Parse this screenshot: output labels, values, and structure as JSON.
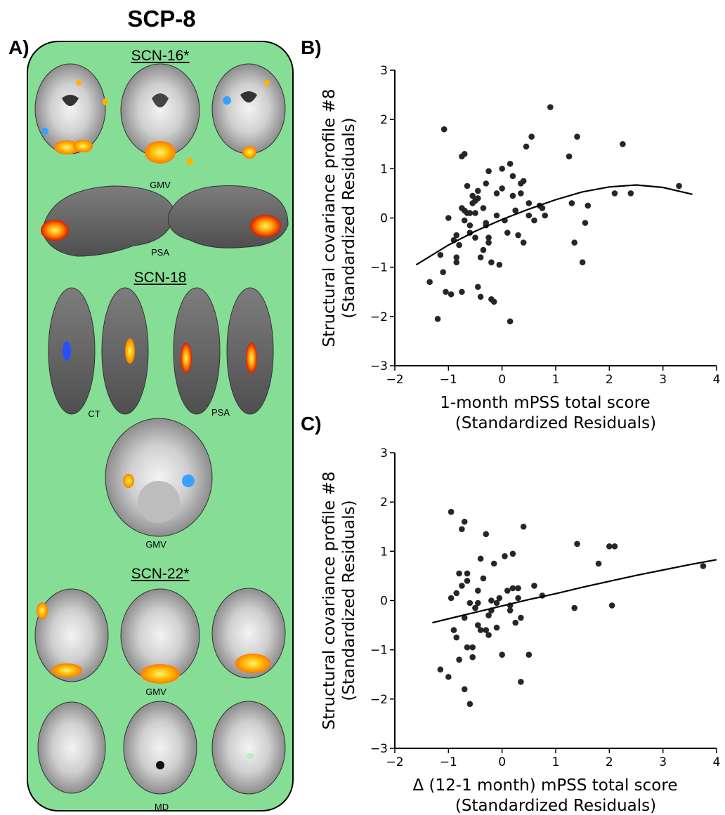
{
  "figure": {
    "title": "SCP-8",
    "panel_a": {
      "letter": "A)",
      "networks": [
        {
          "name": "SCN-16*",
          "labels": [
            "GMV",
            "PSA"
          ]
        },
        {
          "name": "SCN-18",
          "labels": [
            "CT",
            "PSA",
            "GMV"
          ]
        },
        {
          "name": "SCN-22*",
          "labels": [
            "GMV",
            "MD"
          ]
        }
      ]
    }
  },
  "chart_data": [
    {
      "panel": "B)",
      "type": "scatter",
      "xlabel_line1": "1-month mPSS total score",
      "xlabel_line2": "(Standardized Residuals)",
      "ylabel_line1": "Structural covariance profile #8",
      "ylabel_line2": "(Standardized Residuals)",
      "xlim": [
        -2,
        4
      ],
      "ylim": [
        -3,
        3
      ],
      "xticks": [
        -2,
        -1,
        0,
        1,
        2,
        3,
        4
      ],
      "yticks": [
        -3,
        -2,
        -1,
        0,
        1,
        2,
        3
      ],
      "x": [
        -1.35,
        -1.2,
        -1.1,
        -1.15,
        -1.05,
        -1.0,
        -0.95,
        -0.9,
        -0.85,
        -0.8,
        -0.85,
        -0.75,
        -0.7,
        -0.7,
        -0.65,
        -0.6,
        -0.55,
        -0.5,
        -0.5,
        -0.45,
        -0.4,
        -0.35,
        -0.3,
        -0.25,
        -0.2,
        -0.15,
        -0.1,
        -0.05,
        0.0,
        0.05,
        0.1,
        0.15,
        0.2,
        0.25,
        0.3,
        0.35,
        0.4,
        0.45,
        0.5,
        0.55,
        0.6,
        0.7,
        0.8,
        0.9,
        1.3,
        1.35,
        1.5,
        1.6,
        2.1,
        2.25,
        2.4,
        3.3,
        -1.08,
        -0.75,
        -0.7,
        -0.65,
        -0.6,
        -0.55,
        -0.5,
        -0.45,
        -0.4,
        -0.35,
        -0.3,
        -0.25,
        -0.2,
        -0.1,
        0.0,
        0.15,
        0.25,
        0.35,
        0.5,
        0.75,
        1.25,
        1.4,
        1.55,
        -0.85,
        -0.75,
        -0.45,
        -0.6,
        -0.3,
        -0.25,
        0.2,
        0.4
      ],
      "y": [
        -1.3,
        -2.05,
        -1.1,
        -0.75,
        -1.5,
        0.0,
        -1.55,
        -0.45,
        -0.9,
        -0.55,
        -0.35,
        -1.5,
        1.3,
        0.15,
        0.65,
        -0.3,
        0.3,
        0.35,
        0.1,
        0.55,
        -0.8,
        -0.65,
        0.7,
        -0.5,
        -1.65,
        -1.7,
        0.05,
        -0.95,
        1.0,
        -0.05,
        -0.3,
        1.1,
        0.45,
        0.15,
        -0.35,
        0.7,
        0.75,
        1.45,
        0.05,
        1.65,
        -0.05,
        0.25,
        0.05,
        2.25,
        0.3,
        -0.5,
        -0.9,
        0.25,
        0.5,
        1.5,
        0.5,
        0.65,
        1.8,
        1.25,
        -0.05,
        0.1,
        -0.15,
        0.45,
        -0.4,
        -1.4,
        -1.6,
        0.2,
        -0.1,
        0.95,
        -0.9,
        0.5,
        0.6,
        -2.1,
        0.15,
        0.5,
        0.3,
        0.2,
        1.25,
        1.65,
        -0.1,
        -0.8,
        0.2,
        0.4,
        0.1,
        -0.15,
        -0.4,
        0.85,
        -0.5
      ],
      "fit": {
        "x": [
          -1.6,
          -1.0,
          -0.5,
          0.0,
          0.5,
          1.0,
          1.5,
          2.0,
          2.5,
          3.0,
          3.55
        ],
        "y": [
          -0.95,
          -0.55,
          -0.27,
          -0.03,
          0.18,
          0.37,
          0.53,
          0.63,
          0.67,
          0.62,
          0.48
        ]
      }
    },
    {
      "panel": "C)",
      "type": "scatter",
      "xlabel_line1": "Δ (12-1 month) mPSS total score",
      "xlabel_line2": "(Standardized Residuals)",
      "ylabel_line1": "Structural covariance profile #8",
      "ylabel_line2": "(Standardized Residuals)",
      "xlim": [
        -2,
        4
      ],
      "ylim": [
        -3,
        3
      ],
      "xticks": [
        -2,
        -1,
        0,
        1,
        2,
        3,
        4
      ],
      "yticks": [
        -3,
        -2,
        -1,
        0,
        1,
        2,
        3
      ],
      "x": [
        -1.15,
        -1.0,
        -0.95,
        -0.9,
        -0.85,
        -0.8,
        -0.8,
        -0.75,
        -0.7,
        -0.7,
        -0.65,
        -0.6,
        -0.55,
        -0.5,
        -0.45,
        -0.4,
        -0.35,
        -0.3,
        -0.25,
        -0.2,
        -0.15,
        -0.1,
        -0.05,
        0.0,
        0.05,
        0.1,
        0.15,
        0.2,
        0.25,
        0.3,
        0.35,
        0.4,
        0.5,
        0.6,
        0.75,
        1.35,
        1.4,
        1.8,
        2.0,
        2.05,
        2.1,
        3.75,
        -0.95,
        -0.85,
        -0.75,
        -0.7,
        -0.65,
        -0.6,
        -0.5,
        -0.45,
        -0.4,
        -0.3,
        -0.25,
        -0.2,
        -0.1,
        0.2,
        0.3,
        0.35,
        0.15,
        -0.55,
        -0.45,
        -0.65
      ],
      "y": [
        -1.4,
        -1.55,
        0.05,
        -0.6,
        -0.75,
        0.55,
        -1.2,
        1.45,
        1.6,
        -1.8,
        -0.95,
        -2.1,
        -1.15,
        -0.15,
        -0.5,
        0.85,
        0.45,
        -0.6,
        -0.7,
        0.0,
        0.75,
        -0.55,
        0.05,
        -1.1,
        0.9,
        0.2,
        -0.2,
        0.25,
        -0.45,
        0.05,
        -1.65,
        1.5,
        -1.1,
        0.3,
        0.1,
        -0.15,
        1.15,
        0.75,
        1.1,
        -0.1,
        1.1,
        0.7,
        1.8,
        0.15,
        0.3,
        -0.35,
        0.4,
        -0.05,
        -0.15,
        0.2,
        -0.6,
        1.35,
        -0.3,
        -0.2,
        -0.05,
        0.95,
        0.25,
        -0.35,
        -0.1,
        -0.95,
        -0.05,
        0.55
      ],
      "fit": {
        "x": [
          -1.3,
          -1.0,
          -0.5,
          0.0,
          0.5,
          1.0,
          1.5,
          2.0,
          2.5,
          3.0,
          3.5,
          4.0
        ],
        "y": [
          -0.45,
          -0.37,
          -0.24,
          -0.11,
          0.02,
          0.14,
          0.27,
          0.39,
          0.51,
          0.62,
          0.73,
          0.83
        ]
      }
    }
  ]
}
